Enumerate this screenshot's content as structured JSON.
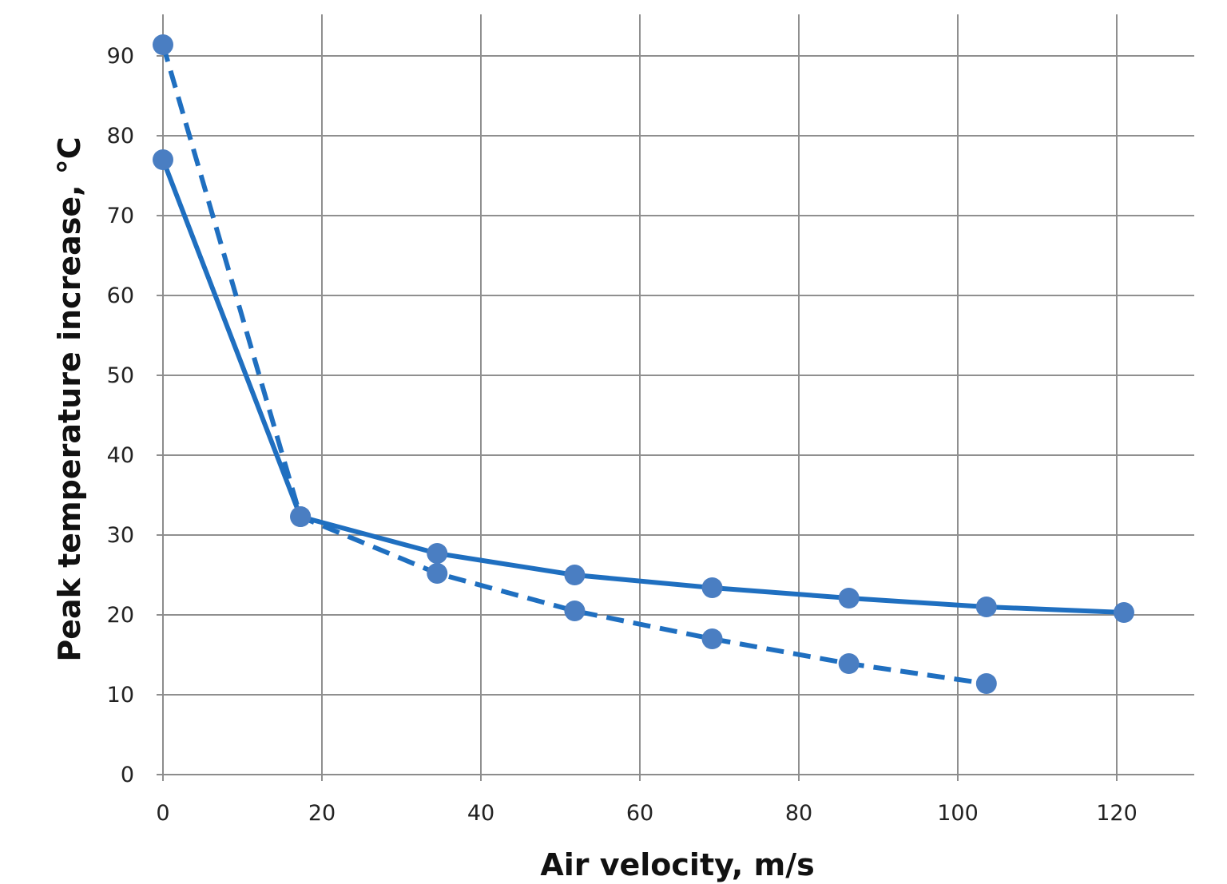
{
  "chart_data": {
    "type": "line",
    "title": "",
    "xlabel": "Air velocity, m/s",
    "ylabel": "Peak temperature increase, °C",
    "xlim": [
      0,
      130
    ],
    "ylim": [
      0,
      95
    ],
    "xticks": [
      0,
      20,
      40,
      60,
      80,
      100,
      120
    ],
    "yticks": [
      0,
      10,
      20,
      30,
      40,
      50,
      60,
      70,
      80,
      90
    ],
    "xtick_labels": [
      "0",
      "20",
      "40",
      "60",
      "80",
      "100",
      "120"
    ],
    "ytick_labels": [
      "0",
      "10",
      "20",
      "30",
      "40",
      "50",
      "60",
      "70",
      "80",
      "90"
    ],
    "grid": true,
    "legend": "none",
    "color": "#1F6FC0",
    "marker_color": "#4A7EC2",
    "series": [
      {
        "style": "solid",
        "x": [
          0,
          17.3,
          34.5,
          51.8,
          69.1,
          86.3,
          103.6,
          120.9
        ],
        "y": [
          77,
          32.3,
          27.7,
          25,
          23.4,
          22.1,
          21,
          20.3
        ]
      },
      {
        "style": "dashed",
        "x": [
          0,
          17.3,
          34.5,
          51.8,
          69.1,
          86.3,
          103.6
        ],
        "y": [
          91.4,
          32.3,
          25.2,
          20.5,
          17,
          13.9,
          11.4
        ]
      }
    ]
  }
}
